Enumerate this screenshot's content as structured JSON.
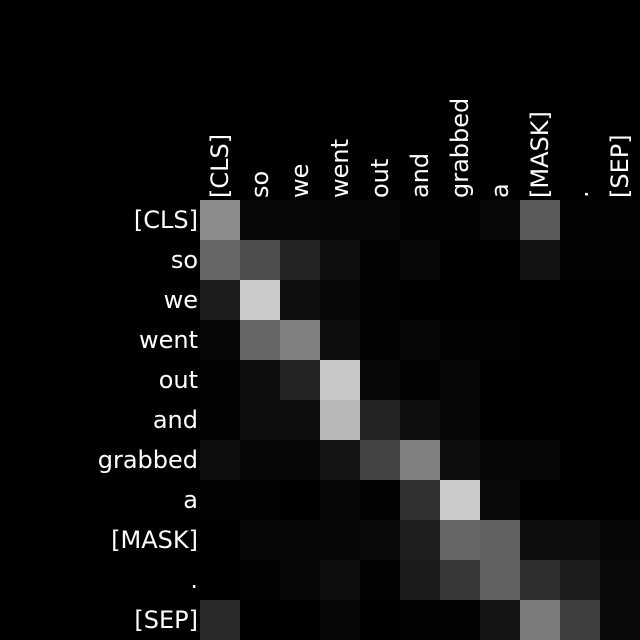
{
  "chart_data": {
    "type": "heatmap",
    "colormap": "grayscale (black = 0, white = 1)",
    "background": "#000000",
    "label_color": "#ffffff",
    "x_labels": [
      "[CLS]",
      "so",
      "we",
      "went",
      "out",
      "and",
      "grabbed",
      "a",
      "[MASK]",
      ".",
      "[SEP]"
    ],
    "y_labels": [
      "[CLS]",
      "so",
      "we",
      "went",
      "out",
      "and",
      "grabbed",
      "a",
      "[MASK]",
      ".",
      "[SEP]"
    ],
    "values": [
      [
        0.55,
        0.03,
        0.03,
        0.02,
        0.02,
        0.01,
        0.01,
        0.03,
        0.35,
        0.01,
        0.01
      ],
      [
        0.4,
        0.3,
        0.14,
        0.06,
        0.01,
        0.03,
        0.0,
        0.0,
        0.07,
        0.01,
        0.01
      ],
      [
        0.11,
        0.8,
        0.06,
        0.03,
        0.01,
        0.0,
        0.0,
        0.0,
        0.0,
        0.0,
        0.0
      ],
      [
        0.02,
        0.4,
        0.5,
        0.05,
        0.01,
        0.02,
        0.01,
        0.01,
        0.0,
        0.0,
        0.0
      ],
      [
        0.01,
        0.05,
        0.14,
        0.78,
        0.03,
        0.01,
        0.02,
        0.0,
        0.0,
        0.0,
        0.0
      ],
      [
        0.01,
        0.05,
        0.05,
        0.72,
        0.14,
        0.06,
        0.02,
        0.0,
        0.0,
        0.0,
        0.0
      ],
      [
        0.05,
        0.02,
        0.02,
        0.08,
        0.26,
        0.5,
        0.05,
        0.02,
        0.02,
        0.0,
        0.0
      ],
      [
        0.01,
        0.01,
        0.0,
        0.02,
        0.01,
        0.19,
        0.8,
        0.04,
        0.0,
        0.0,
        0.0
      ],
      [
        0.0,
        0.02,
        0.02,
        0.02,
        0.04,
        0.12,
        0.4,
        0.38,
        0.05,
        0.05,
        0.02
      ],
      [
        0.0,
        0.01,
        0.02,
        0.05,
        0.01,
        0.1,
        0.21,
        0.38,
        0.18,
        0.11,
        0.04
      ],
      [
        0.16,
        0.0,
        0.0,
        0.02,
        0.0,
        0.01,
        0.01,
        0.08,
        0.48,
        0.24,
        0.04
      ]
    ]
  }
}
